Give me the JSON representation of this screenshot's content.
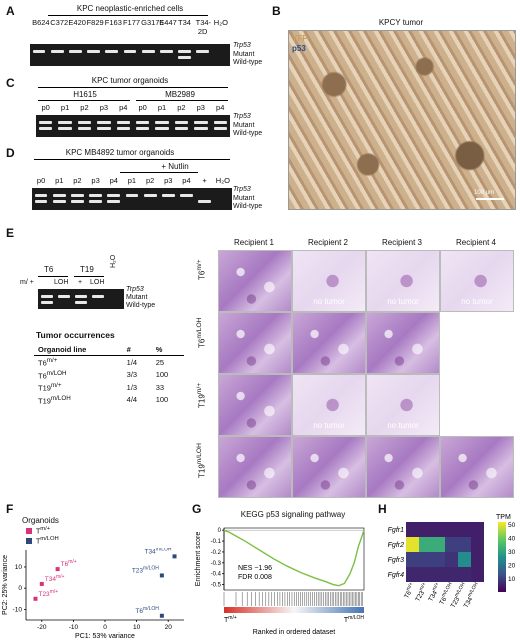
{
  "panels": {
    "A": "A",
    "B": "B",
    "C": "C",
    "D": "D",
    "E": "E",
    "F": "F",
    "G": "G",
    "H": "H"
  },
  "gene": "Trp53",
  "band_labels": {
    "mutant": "Mutant",
    "wildtype": "Wild-type"
  },
  "panel_a": {
    "title": "KPC neoplastic-enriched cells",
    "lanes": [
      "B624",
      "C372",
      "E420",
      "F829",
      "F163",
      "F177",
      "G3176",
      "E447",
      "T34",
      "T34-2D",
      "H₂O"
    ]
  },
  "panel_b": {
    "title": "KPCY tumor",
    "legend_yfp": "YFP",
    "legend_p53": "p53",
    "scale": "100 μm"
  },
  "panel_c": {
    "title": "KPC tumor organoids",
    "group1": "H1615",
    "group2": "MB2989",
    "lanes": [
      "p0",
      "p1",
      "p2",
      "p3",
      "p4",
      "p0",
      "p1",
      "p2",
      "p3",
      "p4"
    ]
  },
  "panel_d": {
    "title": "KPC MB4892 tumor organoids",
    "nutlin": "+ Nutlin",
    "lanes": [
      "p0",
      "p1",
      "p2",
      "p3",
      "p4",
      "p1",
      "p2",
      "p3",
      "p4",
      "+",
      "H₂O"
    ]
  },
  "panel_e": {
    "t6": "T6",
    "t19": "T19",
    "h2o": "H₂O",
    "lane_labels": [
      "m/ +",
      "LOH",
      "+",
      "LOH"
    ],
    "table_title": "Tumor occurrences",
    "col_line": "Organoid line",
    "col_n": "#",
    "col_pct": "%",
    "rows": [
      {
        "line": "T6",
        "sup": "m/+",
        "n": "1/4",
        "pct": "25"
      },
      {
        "line": "T6",
        "sup": "m/LOH",
        "n": "3/3",
        "pct": "100"
      },
      {
        "line": "T19",
        "sup": "m/+",
        "n": "1/3",
        "pct": "33"
      },
      {
        "line": "T19",
        "sup": "m/LOH",
        "n": "4/4",
        "pct": "100"
      }
    ],
    "recipients": [
      "Recipient 1",
      "Recipient 2",
      "Recipient 3",
      "Recipient 4"
    ],
    "row_labels": [
      {
        "base": "T6",
        "sup": "m/+"
      },
      {
        "base": "T6",
        "sup": "m/LOH"
      },
      {
        "base": "T19",
        "sup": "m/+"
      },
      {
        "base": "T19",
        "sup": "m/LOH"
      }
    ],
    "no_tumor": "no tumor"
  },
  "panel_f": {
    "legend_title": "Organoids",
    "legend": [
      {
        "base": "T",
        "sup": "m/+",
        "color": "#d6337a"
      },
      {
        "base": "T",
        "sup": "m/LOH",
        "color": "#2e4a7d"
      }
    ],
    "chart_data": {
      "type": "scatter",
      "xlabel": "PC1: 53% variance",
      "ylabel": "PC2: 25% variance",
      "xlim": [
        -25,
        25
      ],
      "ylim": [
        -15,
        18
      ],
      "xticks": [
        -20,
        -10,
        0,
        10,
        20
      ],
      "yticks": [
        -10,
        0,
        10
      ],
      "points": [
        {
          "label": "T6",
          "sup": "m/+",
          "x": -15,
          "y": 9,
          "group": "m/+"
        },
        {
          "label": "T34",
          "sup": "m/+",
          "x": -20,
          "y": 2,
          "group": "m/+"
        },
        {
          "label": "T23",
          "sup": "m/+",
          "x": -22,
          "y": -5,
          "group": "m/+"
        },
        {
          "label": "T34",
          "sup": "m/LOH",
          "x": 22,
          "y": 15,
          "group": "m/LOH"
        },
        {
          "label": "T23",
          "sup": "m/LOH",
          "x": 18,
          "y": 6,
          "group": "m/LOH"
        },
        {
          "label": "T6",
          "sup": "m/LOH",
          "x": 18,
          "y": -13,
          "group": "m/LOH"
        }
      ]
    }
  },
  "panel_g": {
    "title": "KEGG p53 signaling pathway",
    "nes": "NES −1.96",
    "fdr": "FDR 0.008",
    "xlabel": "Ranked in ordered dataset",
    "left_label": {
      "base": "T",
      "sup": "m/+"
    },
    "right_label": {
      "base": "T",
      "sup": "m/LOH"
    },
    "chart_data": {
      "type": "line",
      "ylabel": "Enrichment score",
      "ylim": [
        -0.55,
        0.02
      ],
      "yticks": [
        0,
        -0.1,
        -0.2,
        -0.3,
        -0.4,
        -0.5
      ],
      "x": [
        0,
        0.04,
        0.08,
        0.15,
        0.25,
        0.35,
        0.45,
        0.55,
        0.65,
        0.72,
        0.78,
        0.82,
        0.86,
        0.9,
        0.93,
        0.96,
        1.0
      ],
      "y": [
        0,
        -0.02,
        -0.05,
        -0.1,
        -0.18,
        -0.26,
        -0.33,
        -0.39,
        -0.44,
        -0.47,
        -0.5,
        -0.51,
        -0.49,
        -0.4,
        -0.3,
        -0.15,
        0
      ]
    }
  },
  "panel_h": {
    "legend_title": "TPM",
    "chart_data": {
      "type": "heatmap",
      "rows": [
        "Fgfr1",
        "Fgfr2",
        "Fgfr3",
        "Fgfr4"
      ],
      "cols": [
        {
          "base": "T6",
          "sup": "m/+"
        },
        {
          "base": "T23",
          "sup": "m/+"
        },
        {
          "base": "T34",
          "sup": "m/+"
        },
        {
          "base": "T6",
          "sup": "m/LOH"
        },
        {
          "base": "T23",
          "sup": "m/LOH"
        },
        {
          "base": "T34",
          "sup": "m/LOH"
        }
      ],
      "values": [
        [
          5,
          5,
          5,
          5,
          5,
          5
        ],
        [
          50,
          32,
          32,
          10,
          10,
          5
        ],
        [
          10,
          10,
          10,
          8,
          25,
          5
        ],
        [
          6,
          6,
          6,
          6,
          6,
          5
        ]
      ],
      "scale_ticks": [
        10,
        20,
        30,
        40,
        50
      ],
      "vmin": 0,
      "vmax": 52
    }
  }
}
